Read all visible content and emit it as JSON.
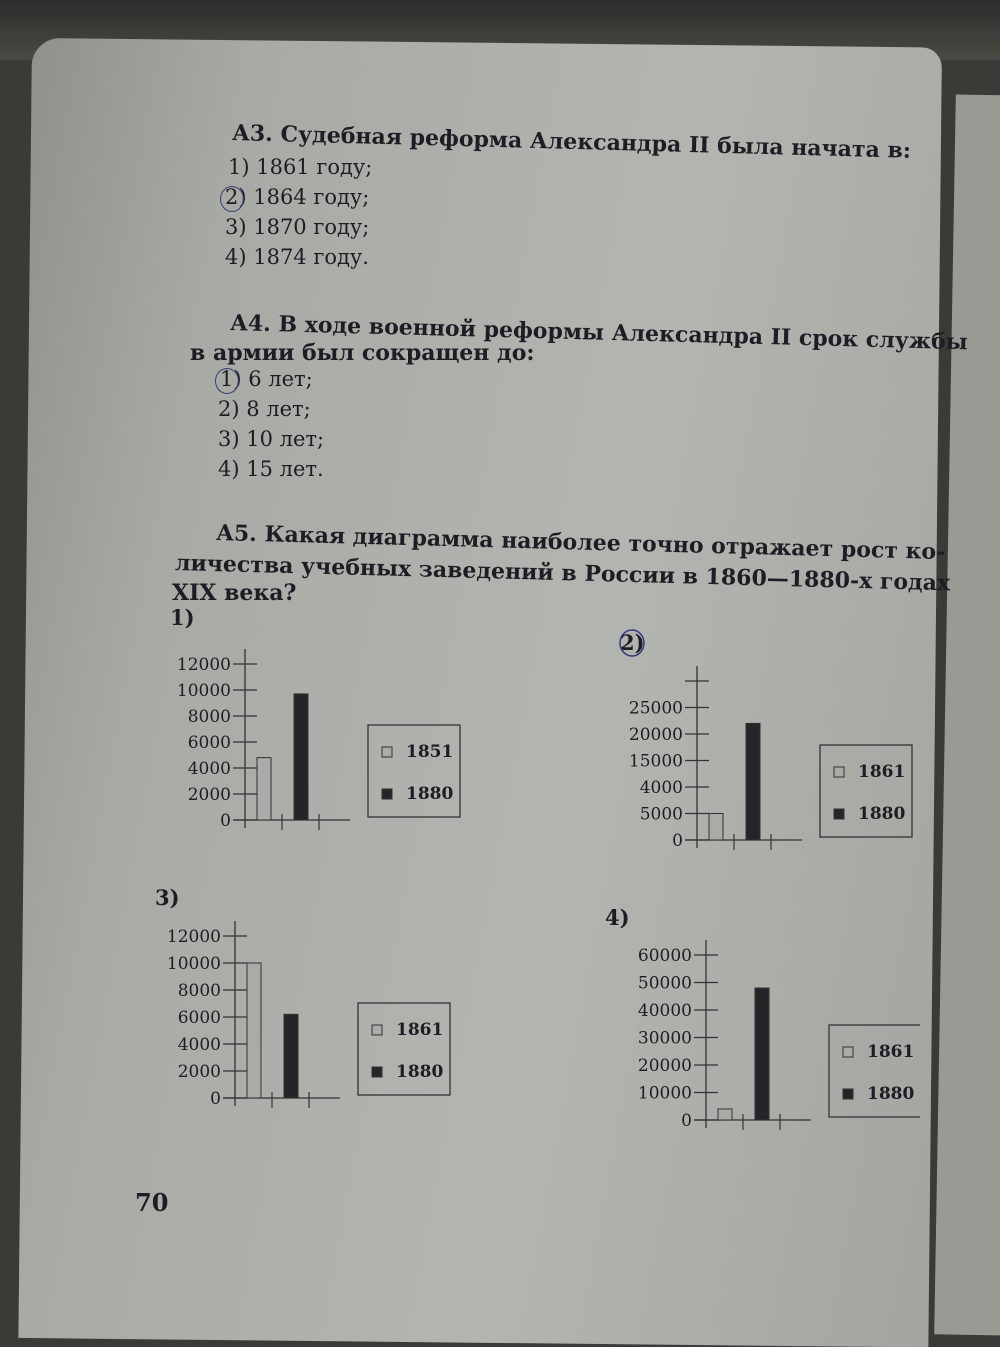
{
  "questions": [
    {
      "title": "А3. Судебная реформа Александра II была начата в:",
      "options": [
        "1) 1861 году;",
        "2) 1864 году;",
        "3) 1870 году;",
        "4) 1874 году."
      ],
      "marked": 1
    },
    {
      "title_line1": "А4. В ходе военной реформы Александра II срок службы",
      "title_line2": "в армии был сокращен до:",
      "options": [
        "1) 6 лет;",
        "2) 8 лет;",
        "3) 10 лет;",
        "4) 15 лет."
      ],
      "marked": 0
    },
    {
      "title_line1": "А5. Какая диаграмма наиболее точно отражает рост ко-",
      "title_line2": "личества учебных заведений в России в 1860—1880-х годах",
      "title_line3": "XIX века?"
    }
  ],
  "page_number": "70",
  "chart_data": [
    {
      "type": "bar",
      "label": "1)",
      "tick_labels": [
        "0",
        "2000",
        "4000",
        "6000",
        "8000",
        "10000",
        "12000"
      ],
      "series": [
        {
          "name": "1851",
          "values": [
            4800
          ],
          "color": "#a9aba6"
        },
        {
          "name": "1880",
          "values": [
            9700
          ],
          "color": "#262428"
        }
      ],
      "legend": "right"
    },
    {
      "type": "bar",
      "label": "2)",
      "marked": true,
      "tick_labels": [
        "0",
        "5000",
        "4000",
        "15000",
        "20000",
        "25000",
        ""
      ],
      "series": [
        {
          "name": "1861",
          "values": [
            5000
          ],
          "color": "#a9aba6"
        },
        {
          "name": "1880",
          "values": [
            22000
          ],
          "color": "#262428"
        }
      ],
      "legend": "right"
    },
    {
      "type": "bar",
      "label": "3)",
      "tick_labels": [
        "0",
        "2000",
        "4000",
        "6000",
        "8000",
        "10000",
        "12000"
      ],
      "series": [
        {
          "name": "1861",
          "values": [
            10000
          ],
          "color": "#a9aba6"
        },
        {
          "name": "1880",
          "values": [
            6200
          ],
          "color": "#262428"
        }
      ],
      "legend": "right"
    },
    {
      "type": "bar",
      "label": "4)",
      "tick_labels": [
        "0",
        "10000",
        "20000",
        "30000",
        "40000",
        "50000",
        "60000"
      ],
      "series": [
        {
          "name": "1861",
          "values": [
            4000
          ],
          "color": "#a9aba6"
        },
        {
          "name": "1880",
          "values": [
            48000
          ],
          "color": "#262428"
        }
      ],
      "legend": "right"
    }
  ]
}
